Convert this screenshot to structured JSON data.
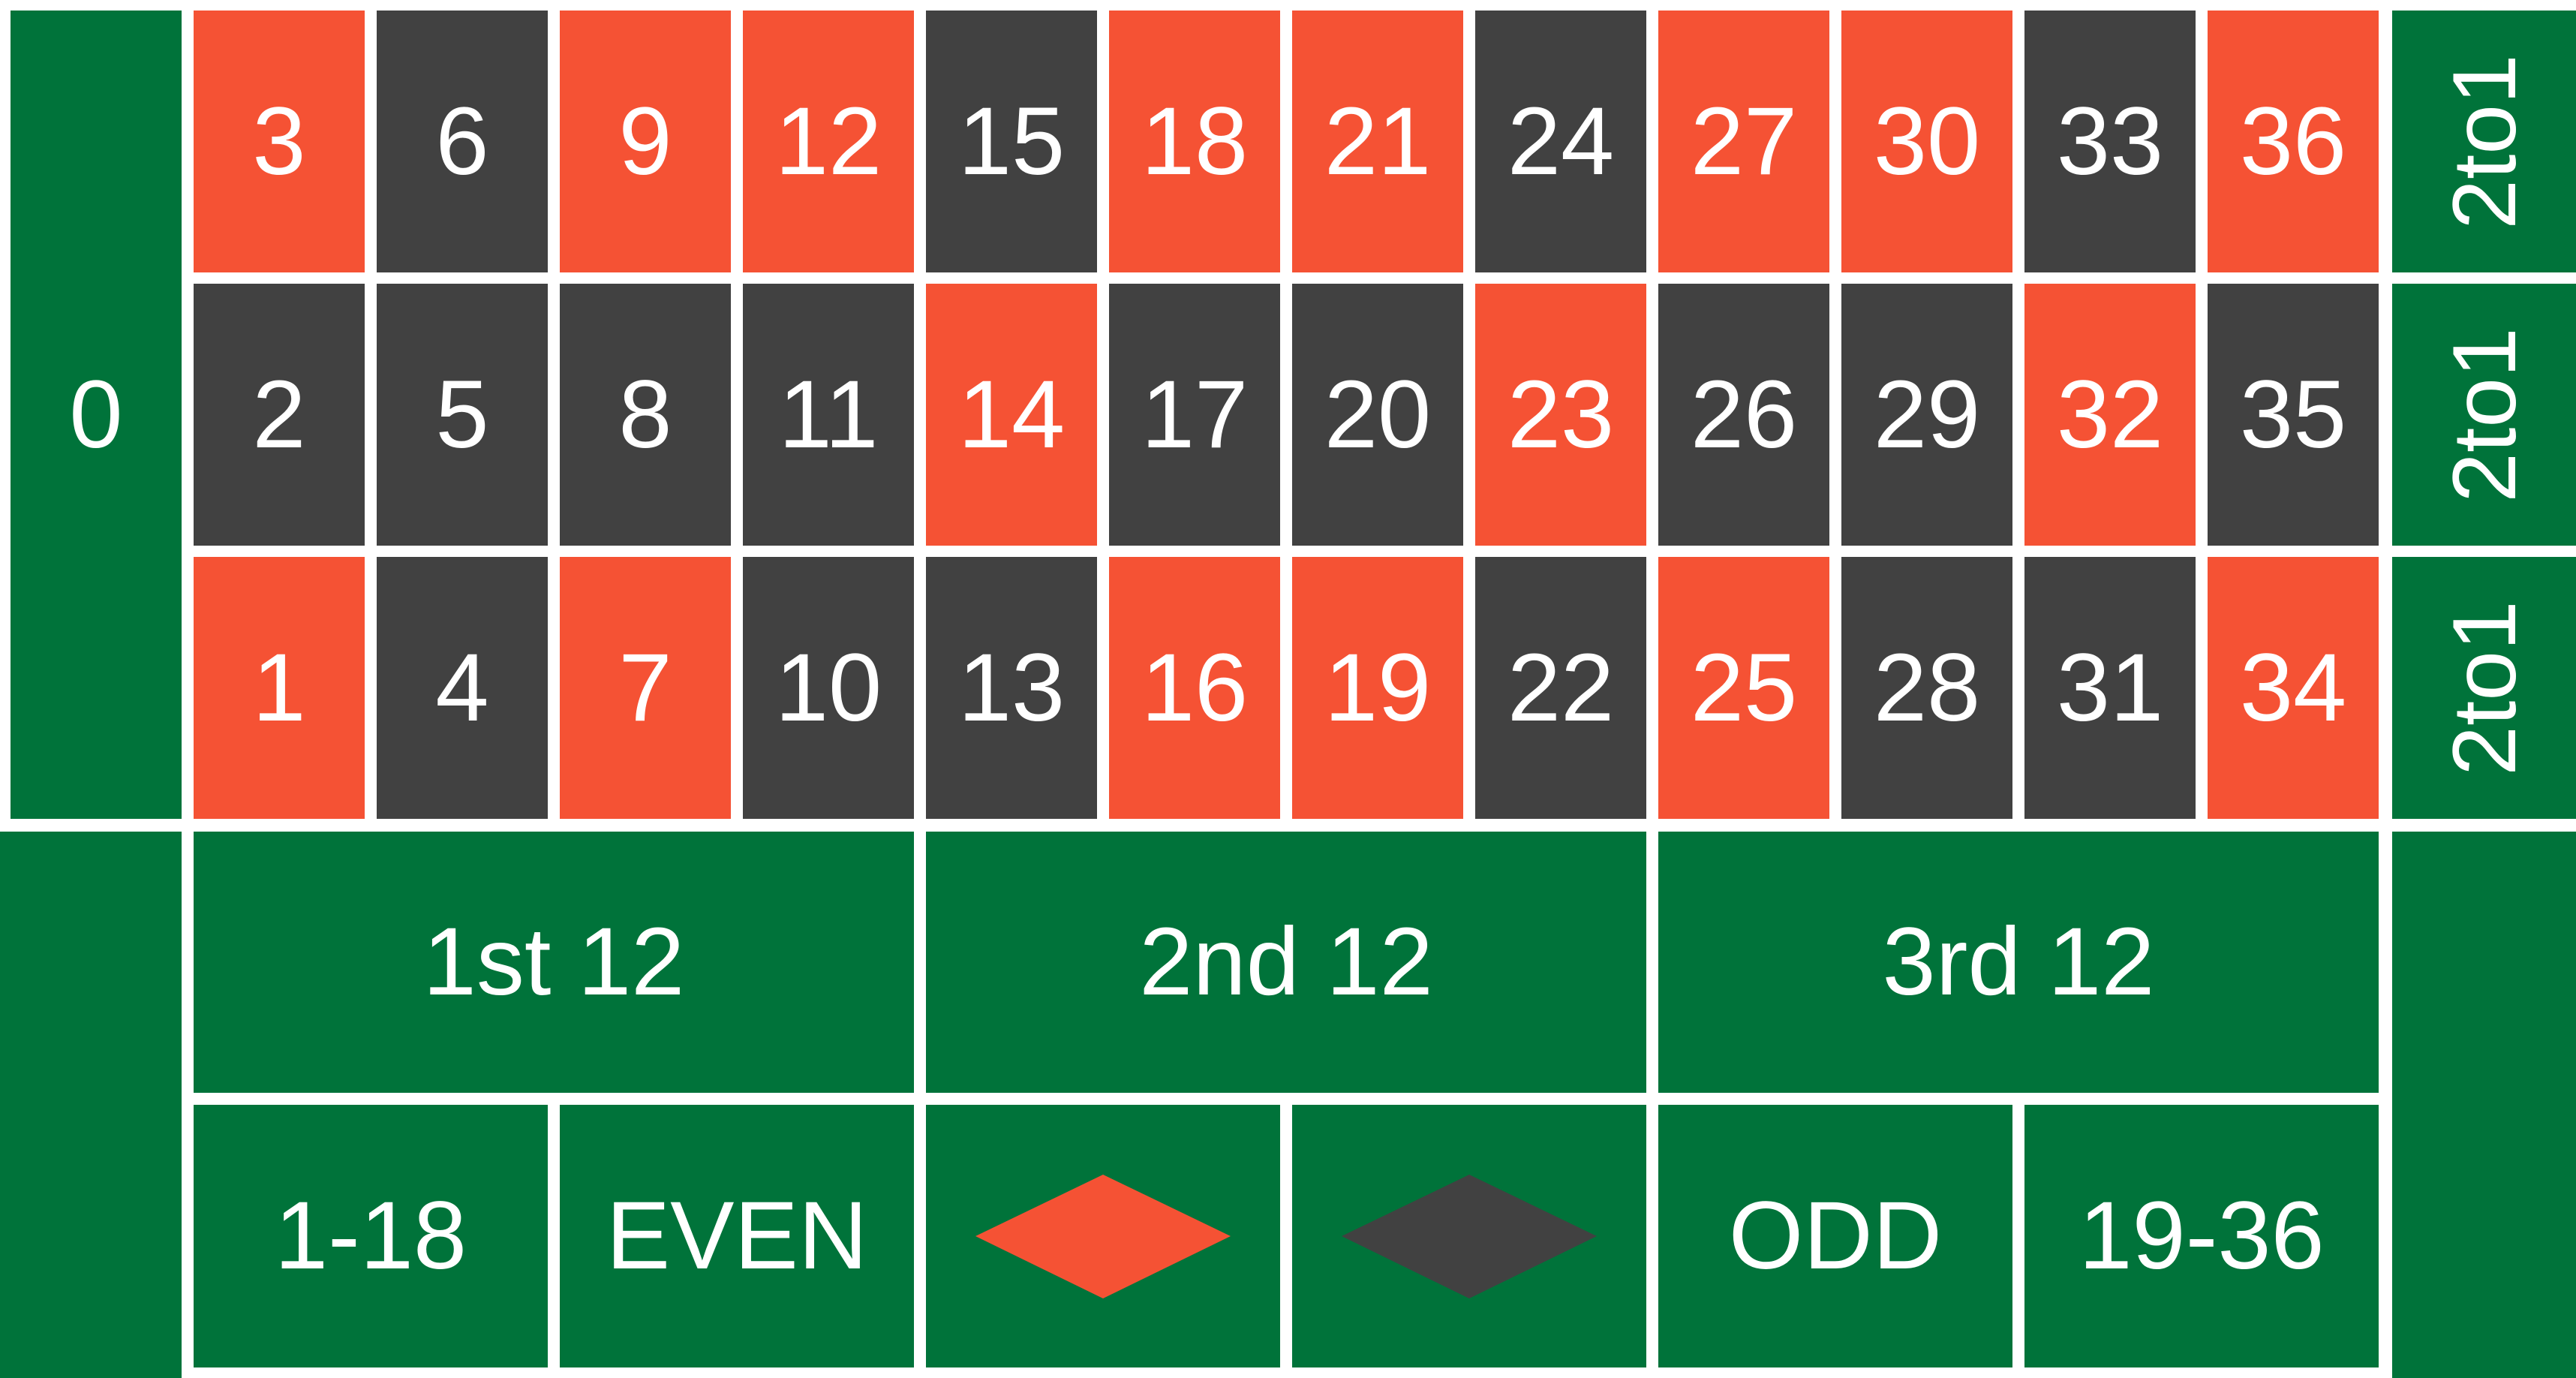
{
  "colors": {
    "felt": "#00733a",
    "red": "#f55234",
    "black": "#414141",
    "lines": "#ffffff",
    "text": "#ffffff"
  },
  "zero": {
    "label": "0"
  },
  "numbers": [
    {
      "label": "3",
      "color": "red"
    },
    {
      "label": "6",
      "color": "black"
    },
    {
      "label": "9",
      "color": "red"
    },
    {
      "label": "12",
      "color": "red"
    },
    {
      "label": "15",
      "color": "black"
    },
    {
      "label": "18",
      "color": "red"
    },
    {
      "label": "21",
      "color": "red"
    },
    {
      "label": "24",
      "color": "black"
    },
    {
      "label": "27",
      "color": "red"
    },
    {
      "label": "30",
      "color": "red"
    },
    {
      "label": "33",
      "color": "black"
    },
    {
      "label": "36",
      "color": "red"
    },
    {
      "label": "2",
      "color": "black"
    },
    {
      "label": "5",
      "color": "black"
    },
    {
      "label": "8",
      "color": "black"
    },
    {
      "label": "11",
      "color": "black"
    },
    {
      "label": "14",
      "color": "red"
    },
    {
      "label": "17",
      "color": "black"
    },
    {
      "label": "20",
      "color": "black"
    },
    {
      "label": "23",
      "color": "red"
    },
    {
      "label": "26",
      "color": "black"
    },
    {
      "label": "29",
      "color": "black"
    },
    {
      "label": "32",
      "color": "red"
    },
    {
      "label": "35",
      "color": "black"
    },
    {
      "label": "1",
      "color": "red"
    },
    {
      "label": "4",
      "color": "black"
    },
    {
      "label": "7",
      "color": "red"
    },
    {
      "label": "10",
      "color": "black"
    },
    {
      "label": "13",
      "color": "black"
    },
    {
      "label": "16",
      "color": "red"
    },
    {
      "label": "19",
      "color": "red"
    },
    {
      "label": "22",
      "color": "black"
    },
    {
      "label": "25",
      "color": "red"
    },
    {
      "label": "28",
      "color": "black"
    },
    {
      "label": "31",
      "color": "black"
    },
    {
      "label": "34",
      "color": "red"
    }
  ],
  "columns": [
    "2to1",
    "2to1",
    "2to1"
  ],
  "dozens": [
    "1st 12",
    "2nd 12",
    "3rd 12"
  ],
  "even_money": {
    "low": "1-18",
    "even": "EVEN",
    "red_icon": "red-diamond-icon",
    "black_icon": "black-diamond-icon",
    "odd": "ODD",
    "high": "19-36"
  }
}
